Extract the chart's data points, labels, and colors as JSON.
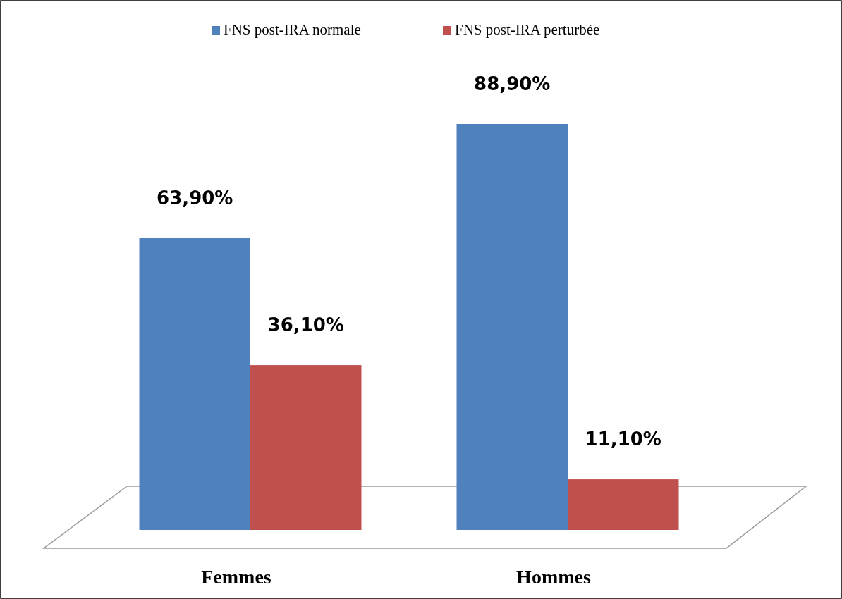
{
  "chart_data": {
    "type": "bar",
    "categories": [
      "Femmes",
      "Hommes"
    ],
    "series": [
      {
        "name": "FNS post-IRA normale",
        "color": "#4f81bd",
        "values": [
          63.9,
          88.9
        ],
        "value_labels": [
          "63,90%",
          "88,90%"
        ]
      },
      {
        "name": "FNS post-IRA perturbée",
        "color": "#c0504d",
        "values": [
          36.1,
          11.1
        ],
        "value_labels": [
          "36,10%",
          "11,10%"
        ]
      }
    ],
    "legend": "top"
  }
}
